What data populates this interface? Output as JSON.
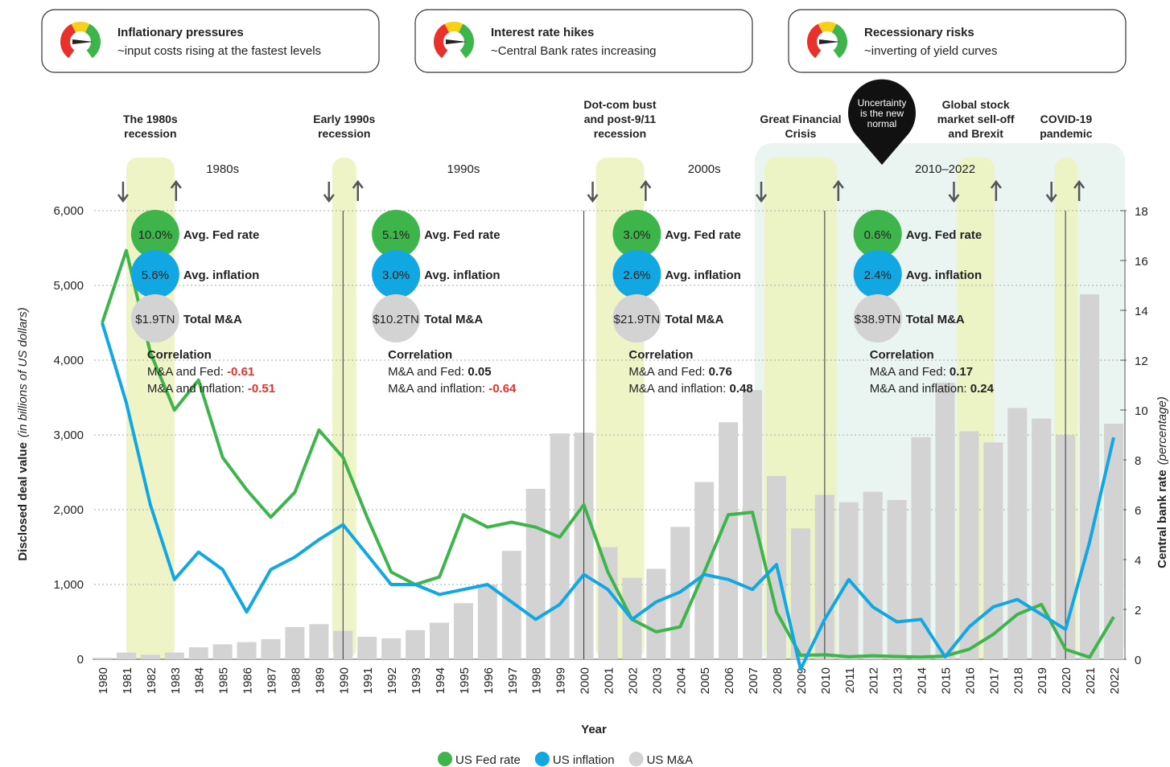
{
  "cards": [
    {
      "title": "Inflationary pressures",
      "subtitle": "~input costs rising at the fastest levels"
    },
    {
      "title": "Interest rate hikes",
      "subtitle": "~Central Bank rates increasing"
    },
    {
      "title": "Recessionary risks",
      "subtitle": "~inverting of yield curves"
    }
  ],
  "chart_data": {
    "type": "bar-line",
    "x_label": "Year",
    "y_label": "Disclosed deal value",
    "y_label_note": "(in billions of  US dollars)",
    "y2_label": "Central bank rate",
    "y2_label_note": "(percentage)",
    "categories": [
      "1980",
      "1981",
      "1982",
      "1983",
      "1984",
      "1985",
      "1986",
      "1987",
      "1988",
      "1989",
      "1990",
      "1991",
      "1992",
      "1993",
      "1994",
      "1995",
      "1996",
      "1997",
      "1998",
      "1999",
      "2000",
      "2001",
      "2002",
      "2003",
      "2004",
      "2005",
      "2006",
      "2007",
      "2008",
      "2009",
      "2010",
      "2011",
      "2012",
      "2013",
      "2014",
      "2015",
      "2016",
      "2017",
      "2018",
      "2019",
      "2020",
      "2021",
      "2022"
    ],
    "series": [
      {
        "name": "US Fed rate",
        "color": "#3db54a",
        "axis": "y2",
        "type": "line",
        "values": [
          13.5,
          16.4,
          12.3,
          10.0,
          11.2,
          8.1,
          6.8,
          5.7,
          6.7,
          9.2,
          8.1,
          5.7,
          3.5,
          3.0,
          3.3,
          5.8,
          5.3,
          5.5,
          5.3,
          4.9,
          6.2,
          3.5,
          1.6,
          1.1,
          1.3,
          3.5,
          5.8,
          5.9,
          1.9,
          0.16,
          0.18,
          0.1,
          0.14,
          0.11,
          0.09,
          0.13,
          0.4,
          1.0,
          1.8,
          2.2,
          0.4,
          0.08,
          1.7
        ]
      },
      {
        "name": "US inflation",
        "color": "#11a7e2",
        "axis": "y2",
        "type": "line",
        "values": [
          13.5,
          10.3,
          6.2,
          3.2,
          4.3,
          3.6,
          1.9,
          3.6,
          4.1,
          4.8,
          5.4,
          4.2,
          3.0,
          3.0,
          2.6,
          2.8,
          3.0,
          2.3,
          1.6,
          2.2,
          3.4,
          2.8,
          1.6,
          2.3,
          2.7,
          3.4,
          3.2,
          2.8,
          3.8,
          -0.4,
          1.6,
          3.2,
          2.1,
          1.5,
          1.6,
          0.1,
          1.3,
          2.1,
          2.4,
          1.8,
          1.2,
          4.7,
          8.9
        ]
      },
      {
        "name": "US M&A",
        "color": "#d3d3d3",
        "type": "bar",
        "values": [
          20,
          90,
          60,
          90,
          160,
          200,
          230,
          270,
          430,
          470,
          380,
          300,
          280,
          390,
          490,
          750,
          1000,
          1450,
          2280,
          3020,
          3030,
          1500,
          1090,
          1210,
          1770,
          2370,
          3170,
          3600,
          2450,
          1750,
          2200,
          2100,
          2240,
          2130,
          2970,
          3700,
          3050,
          2900,
          3360,
          3220,
          3000,
          4880,
          3150
        ]
      }
    ],
    "ylim": [
      0,
      6000
    ],
    "yticks": [
      0,
      {
        "value": 1000,
        "label": "1,000"
      },
      {
        "value": 2000,
        "label": "2,000"
      },
      {
        "value": 3000,
        "label": "3,000"
      },
      {
        "value": 4000,
        "label": "4,000"
      },
      {
        "value": 5000,
        "label": "5,000"
      },
      {
        "value": 6000,
        "label": "6,000"
      }
    ],
    "y2lim": [
      0,
      18
    ],
    "y2ticks": [
      0,
      2,
      4,
      6,
      8,
      10,
      12,
      14,
      16,
      18
    ],
    "grid": true,
    "events": [
      {
        "label": "The 1980s recession",
        "start": 1981,
        "end": 1983
      },
      {
        "label": "Early 1990s recession",
        "start": 1989.55,
        "end": 1990.55
      },
      {
        "label": "Dot-com bust and post-9/11 recession",
        "start": 2000.5,
        "end": 2002.5
      },
      {
        "label": "Great Financial Crisis",
        "start": 2007.5,
        "end": 2010.5
      },
      {
        "label": "Global stock market sell-off and Brexit",
        "start": 2015.5,
        "end": 2017.05
      },
      {
        "label": "COVID-19 pandemic",
        "start": 2019.55,
        "end": 2020.5
      }
    ],
    "callout": "Uncertainty is the new normal",
    "stat_labels": {
      "fed": "Avg. Fed rate",
      "inflation": "Avg. inflation",
      "total": "Total M&A",
      "correlation": "Correlation",
      "corr_fed": "M&A and Fed: ",
      "corr_inflation": "M&A and inflation: "
    },
    "decades": [
      {
        "label": "1980s",
        "fed": "10.0%",
        "inflation": "5.6%",
        "total": "$1.9TN",
        "corr_fed": "-0.61",
        "corr_inflation": "-0.51"
      },
      {
        "label": "1990s",
        "fed": "5.1%",
        "inflation": "3.0%",
        "total": "$10.2TN",
        "corr_fed": "0.05",
        "corr_inflation": "-0.64"
      },
      {
        "label": "2000s",
        "fed": "3.0%",
        "inflation": "2.6%",
        "total": "$21.9TN",
        "corr_fed": "0.76",
        "corr_inflation": "0.48"
      },
      {
        "label": "2010–2022",
        "fed": "0.6%",
        "inflation": "2.4%",
        "total": "$38.9TN",
        "corr_fed": "0.17",
        "corr_inflation": "0.24"
      }
    ]
  }
}
